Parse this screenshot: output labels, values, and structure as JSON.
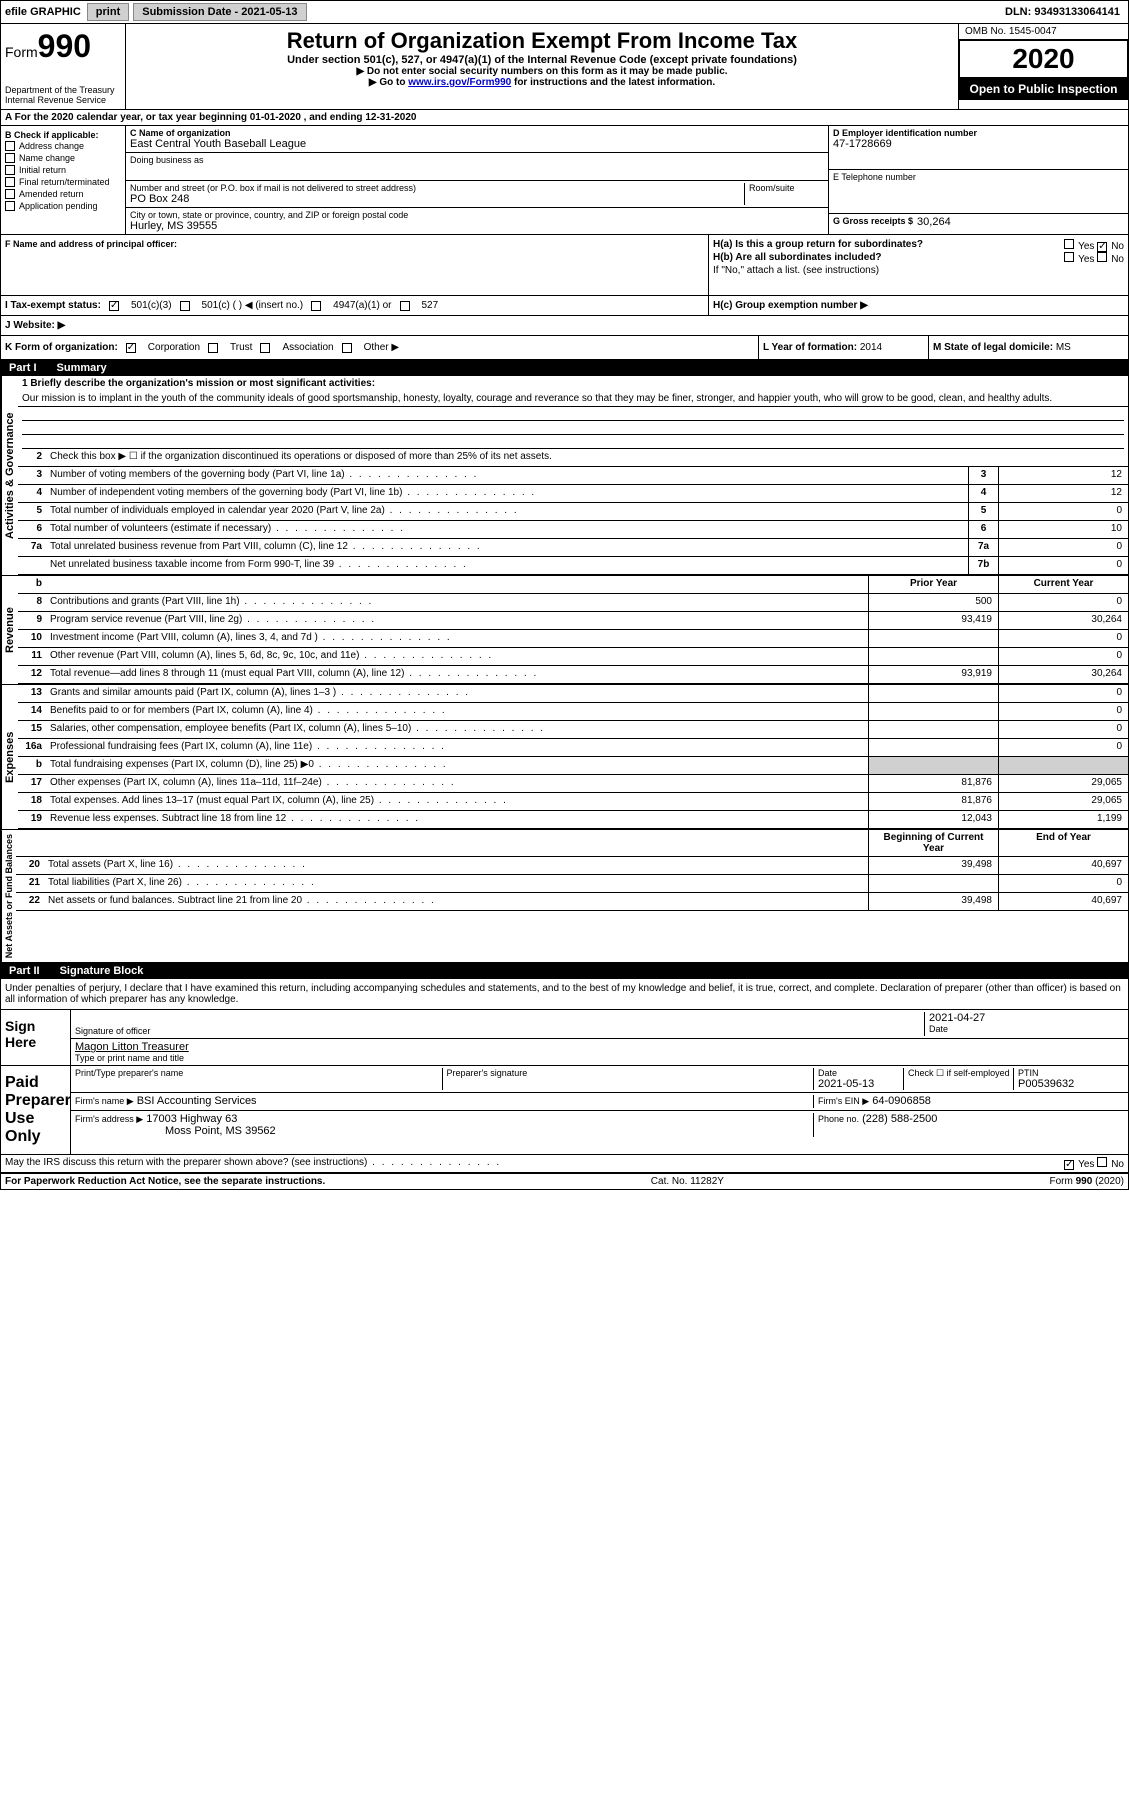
{
  "topbar": {
    "efile": "efile GRAPHIC",
    "print": "print",
    "sub_label": "Submission Date - 2021-05-13",
    "dln": "DLN: 93493133064141"
  },
  "header": {
    "form_word": "Form",
    "form_num": "990",
    "dept": "Department of the Treasury",
    "irs": "Internal Revenue Service",
    "title": "Return of Organization Exempt From Income Tax",
    "subtitle": "Under section 501(c), 527, or 4947(a)(1) of the Internal Revenue Code (except private foundations)",
    "inst1": "▶ Do not enter social security numbers on this form as it may be made public.",
    "inst2_pre": "▶ Go to ",
    "inst2_link": "www.irs.gov/Form990",
    "inst2_post": " for instructions and the latest information.",
    "omb": "OMB No. 1545-0047",
    "year": "2020",
    "open": "Open to Public Inspection"
  },
  "sectionA": {
    "text": "A For the 2020 calendar year, or tax year beginning 01-01-2020    , and ending 12-31-2020"
  },
  "sectionB": {
    "label": "B Check if applicable:",
    "items": [
      "Address change",
      "Name change",
      "Initial return",
      "Final return/terminated",
      "Amended return",
      "Application pending"
    ]
  },
  "sectionC": {
    "name_label": "C Name of organization",
    "name": "East Central Youth Baseball League",
    "dba_label": "Doing business as",
    "addr_label": "Number and street (or P.O. box if mail is not delivered to street address)",
    "room_label": "Room/suite",
    "addr": "PO Box 248",
    "city_label": "City or town, state or province, country, and ZIP or foreign postal code",
    "city": "Hurley, MS  39555"
  },
  "sectionD": {
    "label": "D Employer identification number",
    "value": "47-1728669"
  },
  "sectionE": {
    "label": "E Telephone number",
    "value": ""
  },
  "sectionG": {
    "label": "G Gross receipts $",
    "value": "30,264"
  },
  "sectionF": {
    "label": "F  Name and address of principal officer:"
  },
  "sectionH": {
    "a_label": "H(a)  Is this a group return for subordinates?",
    "a_yes": "Yes",
    "a_no": "No",
    "b_label": "H(b)  Are all subordinates included?",
    "b_yes": "Yes",
    "b_no": "No",
    "b_note": "If \"No,\" attach a list. (see instructions)",
    "c_label": "H(c)  Group exemption number ▶"
  },
  "sectionI": {
    "label": "I  Tax-exempt status:",
    "opt1": "501(c)(3)",
    "opt2": "501(c) (  ) ◀ (insert no.)",
    "opt3": "4947(a)(1) or",
    "opt4": "527"
  },
  "sectionJ": {
    "label": "J  Website: ▶"
  },
  "sectionK": {
    "label": "K Form of organization:",
    "opts": [
      "Corporation",
      "Trust",
      "Association",
      "Other ▶"
    ]
  },
  "sectionL": {
    "label": "L Year of formation:",
    "value": "2014"
  },
  "sectionM": {
    "label": "M State of legal domicile:",
    "value": "MS"
  },
  "part1": {
    "label": "Part I",
    "title": "Summary",
    "q1_label": "1  Briefly describe the organization's mission or most significant activities:",
    "q1_text": "Our mission is to implant in the youth of the community ideals of good sportsmanship, honesty, loyalty, courage and reverance so that they may be finer, stronger, and happier youth, who will grow to be good, clean, and healthy adults.",
    "q2": "Check this box ▶ ☐  if the organization discontinued its operations or disposed of more than 25% of its net assets.",
    "vert_labels": [
      "Activities & Governance",
      "Revenue",
      "Expenses",
      "Net Assets or Fund Balances"
    ],
    "lines_gov": [
      {
        "n": "3",
        "t": "Number of voting members of the governing body (Part VI, line 1a)",
        "box": "3",
        "v": "12"
      },
      {
        "n": "4",
        "t": "Number of independent voting members of the governing body (Part VI, line 1b)",
        "box": "4",
        "v": "12"
      },
      {
        "n": "5",
        "t": "Total number of individuals employed in calendar year 2020 (Part V, line 2a)",
        "box": "5",
        "v": "0"
      },
      {
        "n": "6",
        "t": "Total number of volunteers (estimate if necessary)",
        "box": "6",
        "v": "10"
      },
      {
        "n": "7a",
        "t": "Total unrelated business revenue from Part VIII, column (C), line 12",
        "box": "7a",
        "v": "0"
      },
      {
        "n": "",
        "t": "Net unrelated business taxable income from Form 990-T, line 39",
        "box": "7b",
        "v": "0"
      }
    ],
    "col_prior": "Prior Year",
    "col_current": "Current Year",
    "col_begin": "Beginning of Current Year",
    "col_end": "End of Year",
    "lines_rev": [
      {
        "n": "8",
        "t": "Contributions and grants (Part VIII, line 1h)",
        "p": "500",
        "c": "0"
      },
      {
        "n": "9",
        "t": "Program service revenue (Part VIII, line 2g)",
        "p": "93,419",
        "c": "30,264"
      },
      {
        "n": "10",
        "t": "Investment income (Part VIII, column (A), lines 3, 4, and 7d )",
        "p": "",
        "c": "0"
      },
      {
        "n": "11",
        "t": "Other revenue (Part VIII, column (A), lines 5, 6d, 8c, 9c, 10c, and 11e)",
        "p": "",
        "c": "0"
      },
      {
        "n": "12",
        "t": "Total revenue—add lines 8 through 11 (must equal Part VIII, column (A), line 12)",
        "p": "93,919",
        "c": "30,264"
      }
    ],
    "lines_exp": [
      {
        "n": "13",
        "t": "Grants and similar amounts paid (Part IX, column (A), lines 1–3 )",
        "p": "",
        "c": "0"
      },
      {
        "n": "14",
        "t": "Benefits paid to or for members (Part IX, column (A), line 4)",
        "p": "",
        "c": "0"
      },
      {
        "n": "15",
        "t": "Salaries, other compensation, employee benefits (Part IX, column (A), lines 5–10)",
        "p": "",
        "c": "0"
      },
      {
        "n": "16a",
        "t": "Professional fundraising fees (Part IX, column (A), line 11e)",
        "p": "",
        "c": "0"
      },
      {
        "n": "b",
        "t": "Total fundraising expenses (Part IX, column (D), line 25) ▶0",
        "p": "shaded",
        "c": "shaded"
      },
      {
        "n": "17",
        "t": "Other expenses (Part IX, column (A), lines 11a–11d, 11f–24e)",
        "p": "81,876",
        "c": "29,065"
      },
      {
        "n": "18",
        "t": "Total expenses. Add lines 13–17 (must equal Part IX, column (A), line 25)",
        "p": "81,876",
        "c": "29,065"
      },
      {
        "n": "19",
        "t": "Revenue less expenses. Subtract line 18 from line 12",
        "p": "12,043",
        "c": "1,199"
      }
    ],
    "lines_net": [
      {
        "n": "20",
        "t": "Total assets (Part X, line 16)",
        "p": "39,498",
        "c": "40,697"
      },
      {
        "n": "21",
        "t": "Total liabilities (Part X, line 26)",
        "p": "",
        "c": "0"
      },
      {
        "n": "22",
        "t": "Net assets or fund balances. Subtract line 21 from line 20",
        "p": "39,498",
        "c": "40,697"
      }
    ]
  },
  "part2": {
    "label": "Part II",
    "title": "Signature Block",
    "declaration": "Under penalties of perjury, I declare that I have examined this return, including accompanying schedules and statements, and to the best of my knowledge and belief, it is true, correct, and complete. Declaration of preparer (other than officer) is based on all information of which preparer has any knowledge.",
    "sign_here": "Sign Here",
    "sig_officer": "Signature of officer",
    "sig_date": "Date",
    "sig_date_val": "2021-04-27",
    "sig_name": "Magon Litton  Treasurer",
    "sig_name_label": "Type or print name and title",
    "paid": "Paid Preparer Use Only",
    "prep_name_label": "Print/Type preparer's name",
    "prep_sig_label": "Preparer's signature",
    "prep_date_label": "Date",
    "prep_date": "2021-05-13",
    "prep_check": "Check ☐ if self-employed",
    "ptin_label": "PTIN",
    "ptin": "P00539632",
    "firm_name_label": "Firm's name    ▶",
    "firm_name": "BSI Accounting Services",
    "firm_ein_label": "Firm's EIN ▶",
    "firm_ein": "64-0906858",
    "firm_addr_label": "Firm's address ▶",
    "firm_addr1": "17003 Highway 63",
    "firm_addr2": "Moss Point, MS  39562",
    "phone_label": "Phone no.",
    "phone": "(228) 588-2500",
    "discuss": "May the IRS discuss this return with the preparer shown above? (see instructions)",
    "discuss_yes": "Yes",
    "discuss_no": "No"
  },
  "footer": {
    "left": "For Paperwork Reduction Act Notice, see the separate instructions.",
    "center": "Cat. No. 11282Y",
    "right": "Form 990 (2020)"
  }
}
